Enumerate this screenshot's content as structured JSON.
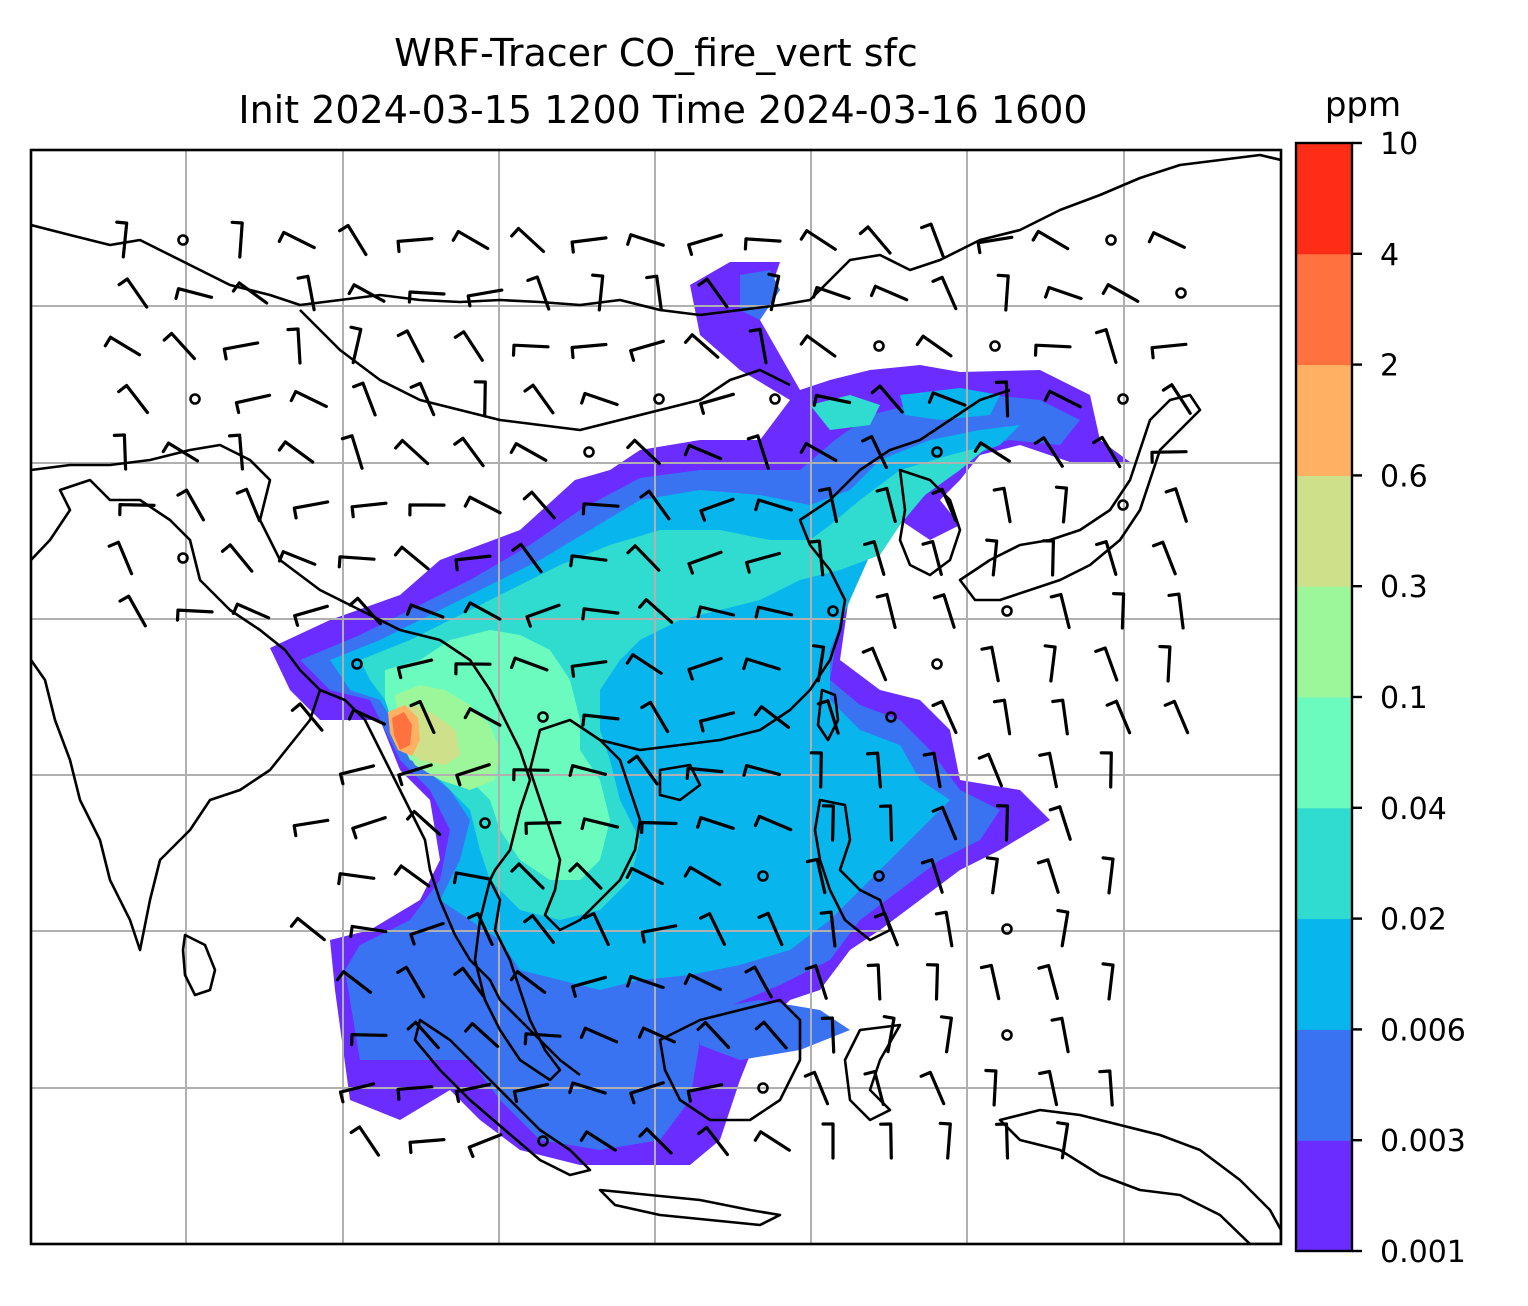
{
  "title_line1": "WRF-Tracer CO_fire_vert sfc",
  "title_line2": "Init 2024-03-15 1200 Time 2024-03-16 1600",
  "colorbar": {
    "unit": "ppm",
    "levels": [
      "0.001",
      "0.003",
      "0.006",
      "0.02",
      "0.04",
      "0.1",
      "0.3",
      "0.6",
      "2",
      "4",
      "10"
    ],
    "colors": [
      "#6a2cff",
      "#3a73f2",
      "#08b5ec",
      "#30dccf",
      "#6cfbbf",
      "#9cf79a",
      "#cfe08a",
      "#ffb062",
      "#ff7240",
      "#ff2d17"
    ]
  },
  "map": {
    "field": "CO_fire_vert",
    "level": "sfc",
    "gridlines": true,
    "overlay": "wind-barbs"
  }
}
